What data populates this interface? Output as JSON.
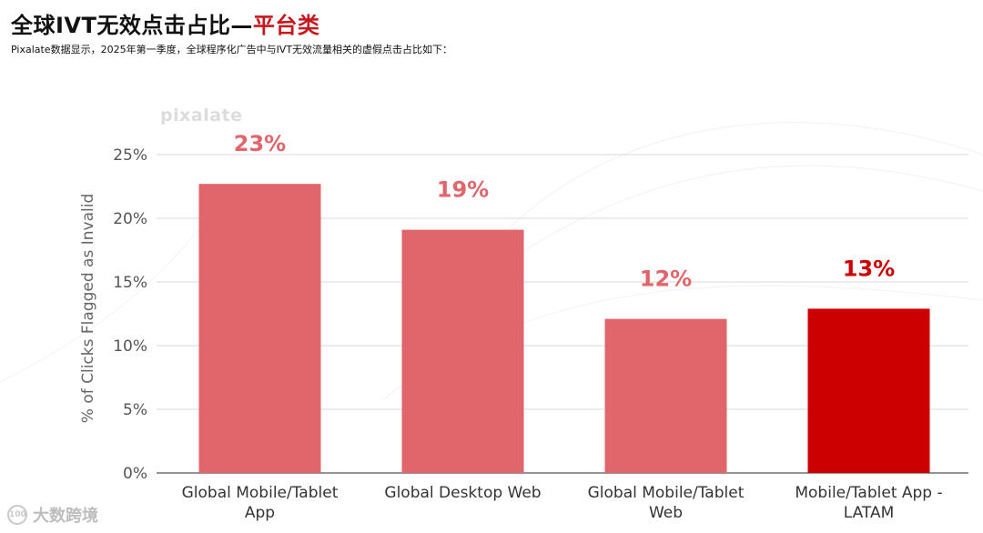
{
  "header": {
    "title_main": "全球IVT无效点击占比—",
    "title_accent": "平台类",
    "subtitle": "Pixalate数据显示，2025年第一季度，全球程序化广告中与IVT无效流量相关的虚假点击占比如下："
  },
  "watermark": "pixalate",
  "source_mark": {
    "logo_text": "100",
    "text": "大数跨境"
  },
  "colors": {
    "bar": "#e0666b",
    "bar_highlight": "#cc0000",
    "label": "#e0666b",
    "label_highlight": "#cc0000",
    "accent": "#c8161d"
  },
  "chart_data": {
    "type": "bar",
    "title": "",
    "ylabel": "% of Clicks Flagged as Invalid",
    "xlabel": "",
    "ylim": [
      0,
      25
    ],
    "y_ticks": [
      "0%",
      "5%",
      "10%",
      "15%",
      "20%",
      "25%"
    ],
    "grid": true,
    "categories": [
      [
        "Global Mobile/Tablet",
        "App"
      ],
      [
        "Global Desktop Web"
      ],
      [
        "Global Mobile/Tablet",
        "Web"
      ],
      [
        "Mobile/Tablet App -",
        "LATAM"
      ]
    ],
    "values": [
      22.7,
      19.1,
      12.1,
      12.9
    ],
    "data_labels": [
      "23%",
      "19%",
      "12%",
      "13%"
    ],
    "highlight": [
      false,
      false,
      false,
      true
    ]
  }
}
